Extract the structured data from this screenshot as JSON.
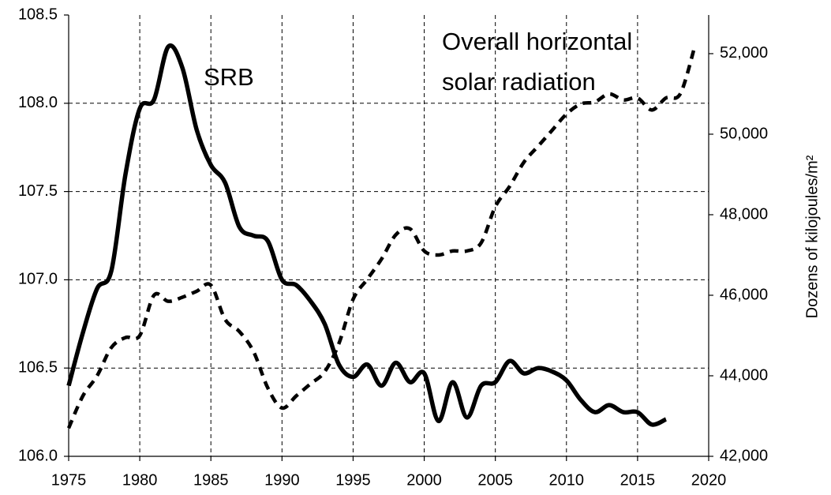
{
  "chart_data": {
    "type": "line",
    "annotations": [
      "SRB",
      "Overall horizontal",
      "solar radiation"
    ],
    "y2label": "Dozens of kilojoules/m²",
    "xlim": [
      1975,
      2020
    ],
    "xticks": [
      1975,
      1980,
      1985,
      1990,
      1995,
      2000,
      2005,
      2010,
      2015,
      2020
    ],
    "ylim": [
      106.0,
      108.5
    ],
    "yticks": [
      {
        "value": 106.0,
        "label": "106.0"
      },
      106.5,
      {
        "value": 107.0,
        "label": "107.0"
      },
      107.5,
      {
        "value": 108.0,
        "label": "108.0"
      },
      108.5
    ],
    "y2lim": [
      42000,
      52960
    ],
    "y2ticks": [
      {
        "value": 42000,
        "label": "42,000"
      },
      {
        "value": 44000,
        "label": "44,000"
      },
      {
        "value": 46000,
        "label": "46,000"
      },
      {
        "value": 48000,
        "label": "48,000"
      },
      {
        "value": 50000,
        "label": "50,000"
      },
      {
        "value": 52000,
        "label": "52,000"
      }
    ],
    "grid": true,
    "series": [
      {
        "color": "#000000",
        "dash": false,
        "x": [
          1975,
          1976,
          1977,
          1978,
          1979,
          1980,
          1981,
          1982,
          1983,
          1984,
          1985,
          1986,
          1987,
          1988,
          1989,
          1990,
          1991,
          1992,
          1993,
          1994,
          1995,
          1996,
          1997,
          1998,
          1999,
          2000,
          2001,
          2002,
          2003,
          2004,
          2005,
          2006,
          2007,
          2008,
          2009,
          2010,
          2011,
          2012,
          2013,
          2014,
          2015,
          2016,
          2017
        ],
        "values": [
          106.4,
          106.7,
          106.95,
          107.05,
          107.6,
          107.97,
          108.02,
          108.32,
          108.2,
          107.85,
          107.65,
          107.55,
          107.3,
          107.25,
          107.22,
          107.0,
          106.97,
          106.88,
          106.75,
          106.52,
          106.45,
          106.52,
          106.4,
          106.53,
          106.42,
          106.47,
          106.2,
          106.42,
          106.22,
          106.4,
          106.42,
          106.54,
          106.47,
          106.5,
          106.48,
          106.43,
          106.32,
          106.25,
          106.29,
          106.25,
          106.25,
          106.18,
          106.21
        ]
      },
      {
        "color": "#000000",
        "dash": true,
        "axis": "y2",
        "x": [
          1975,
          1976,
          1977,
          1978,
          1979,
          1980,
          1981,
          1982,
          1983,
          1984,
          1985,
          1986,
          1987,
          1988,
          1989,
          1990,
          1991,
          1992,
          1993,
          1994,
          1995,
          1996,
          1997,
          1998,
          1999,
          2000,
          2001,
          2002,
          2003,
          2004,
          2005,
          2006,
          2007,
          2008,
          2009,
          2010,
          2011,
          2012,
          2013,
          2014,
          2015,
          2016,
          2017,
          2018,
          2019
        ],
        "values": [
          42700,
          43500,
          44000,
          44700,
          44950,
          45000,
          46000,
          45850,
          45950,
          46100,
          46250,
          45400,
          45100,
          44600,
          43700,
          43200,
          43500,
          43800,
          44100,
          44800,
          45900,
          46400,
          46900,
          47500,
          47650,
          47100,
          47000,
          47100,
          47100,
          47300,
          48200,
          48700,
          49300,
          49700,
          50100,
          50500,
          50750,
          50800,
          51000,
          50850,
          50900,
          50600,
          50900,
          51000,
          52150
        ]
      }
    ]
  }
}
